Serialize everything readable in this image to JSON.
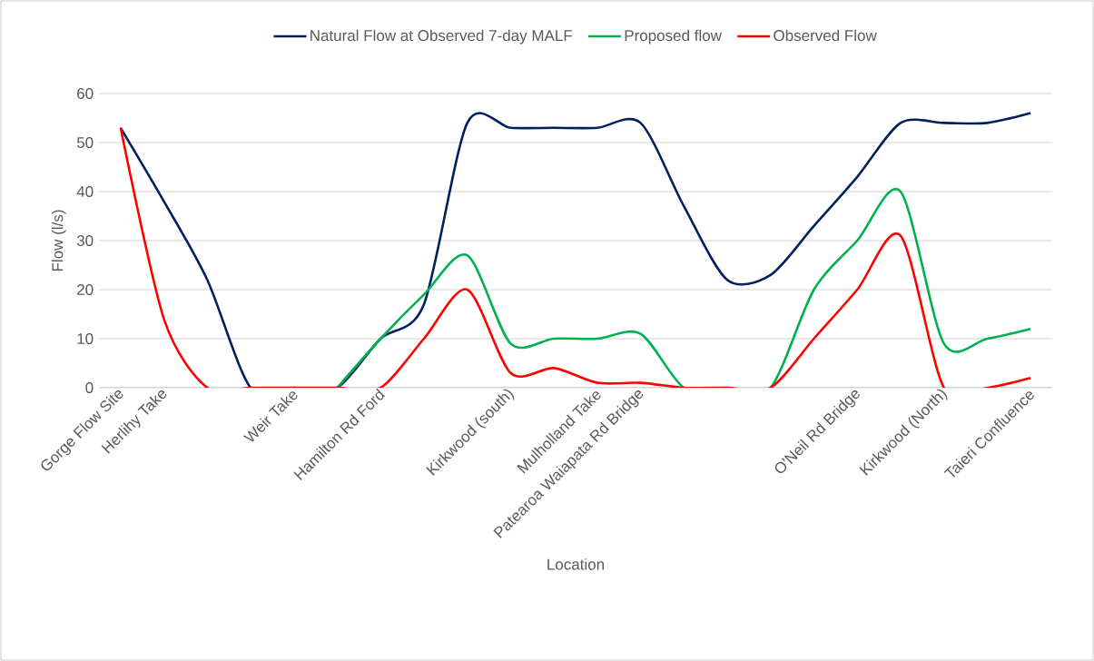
{
  "chart_data": {
    "type": "line",
    "xlabel": "Location",
    "ylabel": "Flow (l/s)",
    "categories": [
      "Gorge Flow Site",
      "Herlihy Take",
      null,
      null,
      "Weir Take",
      null,
      "Hamilton Rd Ford",
      null,
      null,
      "Kirkwood (south)",
      null,
      "Mulholland Take",
      "Patearoa Waiapata Rd Bridge",
      null,
      null,
      null,
      null,
      "O'Neil Rd Bridge",
      null,
      "Kirkwood (North)",
      null,
      "Taieri Confluence"
    ],
    "series": [
      {
        "name": "Natural Flow at Observed 7-day MALF",
        "color": "#002060",
        "values": [
          53,
          38,
          22,
          0,
          0,
          0,
          10,
          17,
          54,
          53,
          53,
          53,
          54,
          37,
          22,
          23,
          33,
          43,
          54,
          54,
          54,
          56
        ]
      },
      {
        "name": "Proposed flow",
        "color": "#00b050",
        "values": [
          null,
          null,
          null,
          null,
          null,
          0,
          10,
          19,
          27,
          9,
          10,
          10,
          11,
          0,
          0,
          0,
          20,
          30,
          40,
          9,
          10,
          12
        ]
      },
      {
        "name": "Observed Flow",
        "color": "#ff0000",
        "values": [
          53,
          14,
          0,
          0,
          0,
          0,
          0,
          10,
          20,
          3,
          4,
          1,
          1,
          0,
          0,
          0,
          10,
          20,
          31,
          0,
          0,
          2
        ]
      }
    ],
    "ylim": [
      0,
      60
    ],
    "yticks": [
      0,
      10,
      20,
      30,
      40,
      50,
      60
    ],
    "grid": "y",
    "legend": "top",
    "marker": "none",
    "line_style": "solid"
  }
}
